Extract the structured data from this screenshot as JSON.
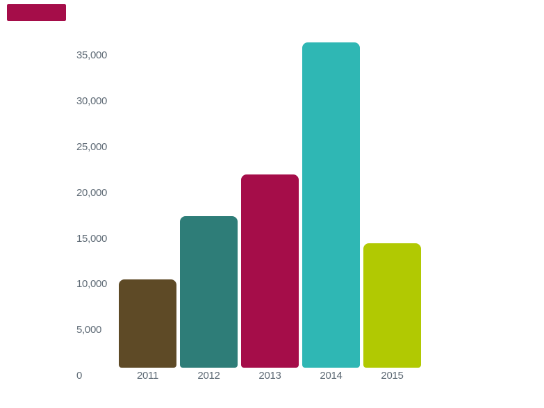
{
  "chart_data": {
    "type": "bar",
    "title": "",
    "xlabel": "",
    "ylabel": "",
    "categories": [
      "2011",
      "2012",
      "2013",
      "2014",
      "2015"
    ],
    "values": [
      10600,
      17500,
      22000,
      36500,
      14500
    ],
    "bar_colors": [
      "#5E4A26",
      "#2E7D78",
      "#A50D49",
      "#2FB7B4",
      "#B1C902"
    ],
    "yticks": [
      0,
      5000,
      10000,
      15000,
      20000,
      25000,
      30000,
      35000
    ],
    "ytick_labels": [
      "0",
      "5,000",
      "10,000",
      "15,000",
      "20,000",
      "25,000",
      "30,000",
      "35,000"
    ],
    "ylim": [
      0,
      36750
    ],
    "grid": false,
    "legend": false,
    "axis_label_color": "#5E6A75",
    "background_color": "#FFFFFF"
  },
  "decor": {
    "top_left_rectangle_color": "#A50D49"
  }
}
